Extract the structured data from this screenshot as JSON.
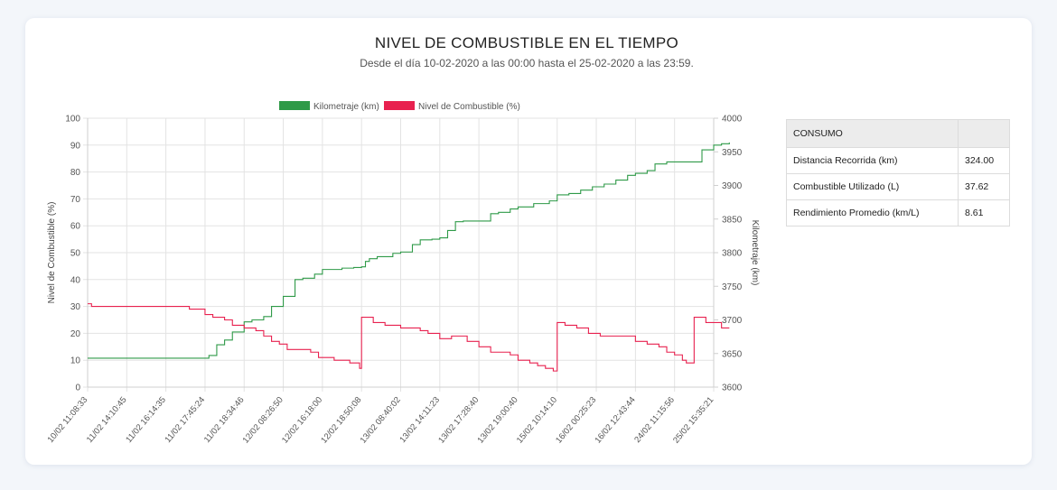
{
  "page": {
    "title": "NIVEL DE COMBUSTIBLE EN EL TIEMPO",
    "subtitle": "Desde el día 10-02-2020 a las 00:00 hasta el 25-02-2020 a las 23:59."
  },
  "chart_data": {
    "type": "line",
    "grid": true,
    "legend_position": "top-center",
    "xlabel": "",
    "ylabel_left": "Nivel de Combustible (%)",
    "ylabel_right": "Kilometraje (km)",
    "ylim_left": [
      0,
      100
    ],
    "ylim_right": [
      3600,
      4000
    ],
    "y_ticks_left": [
      0,
      10,
      20,
      30,
      40,
      50,
      60,
      70,
      80,
      90,
      100
    ],
    "y_ticks_right": [
      3600,
      3650,
      3700,
      3750,
      3800,
      3850,
      3900,
      3950,
      4000
    ],
    "x_tick_labels": [
      "10/02 11:08:33",
      "11/02 14:10:45",
      "11/02 16:14:35",
      "11/02 17:45:24",
      "11/02 18:34:46",
      "12/02 08:26:50",
      "12/02 16:18:00",
      "12/02 18:50:08",
      "13/02 08:40:02",
      "13/02 14:11:23",
      "13/02 17:28:40",
      "13/02 19:00:40",
      "15/02 10:14:10",
      "16/02 00:25:23",
      "16/02 12:43:44",
      "24/02 11:15:56",
      "25/02 15:35:21"
    ],
    "series": [
      {
        "name": "Kilometraje (km)",
        "axis": "right",
        "color": "#2f9a48",
        "x": [
          0,
          3.0,
          3.1,
          3.3,
          3.5,
          3.7,
          4.0,
          4.2,
          4.5,
          4.7,
          5.0,
          5.3,
          5.5,
          5.8,
          6.0,
          6.5,
          6.8,
          7.0,
          7.1,
          7.2,
          7.4,
          7.8,
          8.0,
          8.3,
          8.5,
          8.8,
          9.0,
          9.2,
          9.4,
          9.6,
          10.0,
          10.3,
          10.5,
          10.8,
          11.0,
          11.4,
          11.8,
          12.0,
          12.3,
          12.6,
          12.9,
          13.2,
          13.5,
          13.8,
          14.0,
          14.3,
          14.5,
          14.8,
          15.0,
          15.5,
          15.7,
          16.0,
          16.2,
          16.4
        ],
        "values": [
          3643,
          3643,
          3647,
          3663,
          3670,
          3682,
          3697,
          3700,
          3705,
          3720,
          3735,
          3760,
          3762,
          3768,
          3775,
          3777,
          3778,
          3779,
          3787,
          3791,
          3794,
          3799,
          3801,
          3812,
          3819,
          3820,
          3822,
          3833,
          3846,
          3847,
          3847,
          3858,
          3860,
          3865,
          3868,
          3873,
          3877,
          3886,
          3888,
          3893,
          3898,
          3902,
          3908,
          3915,
          3918,
          3922,
          3932,
          3935,
          3935,
          3935,
          3953,
          3960,
          3962,
          3964
        ]
      },
      {
        "name": "Nivel de Combustible (%)",
        "axis": "left",
        "color": "#e8214f",
        "x": [
          0,
          0.1,
          1.0,
          2.0,
          2.4,
          2.6,
          2.8,
          3.0,
          3.2,
          3.5,
          3.7,
          4.0,
          4.3,
          4.5,
          4.7,
          4.9,
          5.1,
          5.4,
          5.7,
          5.9,
          6.1,
          6.3,
          6.5,
          6.7,
          6.8,
          6.95,
          7.0,
          7.3,
          7.6,
          8.0,
          8.5,
          8.7,
          9.0,
          9.3,
          9.4,
          9.5,
          9.7,
          10.0,
          10.3,
          10.6,
          10.8,
          11.0,
          11.3,
          11.5,
          11.7,
          11.9,
          12.0,
          12.2,
          12.5,
          12.8,
          13.1,
          13.5,
          14.0,
          14.3,
          14.6,
          14.8,
          15.0,
          15.2,
          15.3,
          15.5,
          15.8,
          16.2,
          16.4
        ],
        "values": [
          31,
          30,
          30,
          30,
          30,
          29,
          29,
          27,
          26,
          25,
          23,
          22,
          21,
          19,
          17,
          16,
          14,
          14,
          13,
          11,
          11,
          10,
          10,
          9,
          9,
          7,
          26,
          24,
          23,
          22,
          21,
          20,
          18,
          19,
          19,
          19,
          17,
          15,
          13,
          13,
          12,
          10,
          9,
          8,
          7,
          6,
          24,
          23,
          22,
          20,
          19,
          19,
          17,
          16,
          15,
          13,
          12,
          10,
          9,
          26,
          24,
          22,
          22
        ]
      }
    ]
  },
  "table": {
    "header": "CONSUMO",
    "header_value": "",
    "rows": [
      {
        "label": "Distancia Recorrida (km)",
        "value": "324.00"
      },
      {
        "label": "Combustible Utilizado (L)",
        "value": "37.62"
      },
      {
        "label": "Rendimiento Promedio (km/L)",
        "value": "8.61"
      }
    ]
  }
}
